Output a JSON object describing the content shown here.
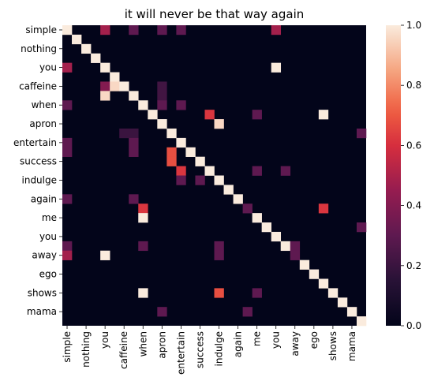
{
  "chart_data": {
    "type": "heatmap",
    "title": "it will never be that way again",
    "x_labels": [
      "simple",
      "nothing",
      "you",
      "caffeine",
      "when",
      "apron",
      "entertain",
      "success",
      "indulge",
      "again",
      "me",
      "you",
      "away",
      "ego",
      "shows",
      "mama"
    ],
    "y_labels": [
      "simple",
      "nothing",
      "you",
      "caffeine",
      "when",
      "apron",
      "entertain",
      "success",
      "indulge",
      "again",
      "me",
      "you",
      "away",
      "ego",
      "shows",
      "mama"
    ],
    "rows": [
      "simple",
      "",
      "nothing",
      "",
      "you",
      "",
      "caffeine",
      "",
      "when",
      "",
      "apron",
      "",
      "entertain",
      "",
      "success",
      "",
      "indulge",
      "",
      "again",
      "",
      "me",
      "",
      "you",
      "",
      "away",
      "",
      "ego",
      "",
      "shows",
      "",
      "mama",
      ""
    ],
    "cols": [
      "simple",
      "",
      "nothing",
      "",
      "you",
      "",
      "caffeine",
      "",
      "when",
      "",
      "apron",
      "",
      "entertain",
      "",
      "success",
      "",
      "indulge",
      "",
      "again",
      "",
      "me",
      "",
      "you",
      "",
      "away",
      "",
      "ego",
      "",
      "shows",
      "",
      "mama",
      ""
    ],
    "values": [
      [
        1,
        0,
        0,
        0,
        0,
        0,
        0,
        0,
        0,
        0,
        0,
        0,
        0,
        0,
        0,
        0,
        0,
        0,
        0,
        0,
        0,
        0,
        0,
        0,
        0,
        0,
        0,
        0,
        0,
        0,
        0,
        0
      ],
      [
        0,
        1,
        0,
        0,
        0,
        0,
        0,
        0,
        0,
        0,
        0,
        0,
        0,
        0,
        0,
        0,
        0,
        0,
        0,
        0,
        0,
        0,
        0,
        0,
        0,
        0,
        0,
        0,
        0,
        0,
        0,
        0
      ],
      [
        0,
        0,
        1,
        0,
        0,
        0,
        0,
        0,
        0,
        0,
        0,
        0,
        0,
        0,
        0,
        0,
        0,
        0,
        0,
        0,
        0,
        0,
        0,
        0,
        0,
        0,
        0,
        0,
        0,
        0,
        0,
        0
      ],
      [
        0,
        0,
        0,
        1,
        0,
        0,
        0,
        0,
        0,
        0,
        0,
        0,
        0,
        0,
        0,
        0,
        0,
        0,
        0,
        0,
        0,
        0,
        0,
        0,
        0,
        0,
        0,
        0,
        0,
        0,
        0,
        0
      ],
      [
        0,
        0,
        0,
        0,
        1,
        0,
        0,
        0,
        0,
        0,
        0,
        0,
        0,
        0,
        0,
        0,
        0,
        0,
        0,
        0,
        0,
        0,
        0,
        0,
        0,
        0,
        0,
        0,
        0,
        0,
        0,
        0
      ],
      [
        0,
        0,
        0,
        0,
        0,
        1,
        0,
        0,
        0,
        0,
        0,
        0,
        0,
        0,
        0,
        0,
        0,
        0,
        0,
        0,
        0,
        0,
        0,
        0,
        0,
        0,
        0,
        0,
        0,
        0,
        0,
        0
      ],
      [
        0,
        0,
        0,
        0,
        0,
        0,
        1,
        0,
        0,
        0,
        0,
        0,
        0,
        0,
        0,
        0,
        0,
        0,
        0,
        0,
        0,
        0,
        0,
        0,
        0,
        0,
        0,
        0,
        0,
        0,
        0,
        0
      ],
      [
        0,
        0,
        0,
        0,
        0,
        0,
        0,
        1,
        0,
        0,
        0,
        0,
        0,
        0,
        0,
        0,
        0,
        0,
        0,
        0,
        0,
        0,
        0,
        0,
        0,
        0,
        0,
        0,
        0,
        0,
        0,
        0
      ],
      [
        0,
        0,
        0,
        0,
        0,
        0,
        0,
        0,
        1,
        0,
        0,
        0,
        0,
        0,
        0,
        0,
        0,
        0,
        0,
        0,
        0,
        0,
        0,
        0,
        0,
        0,
        0,
        0,
        0,
        0,
        0,
        0
      ],
      [
        0,
        0,
        0,
        0,
        0,
        0,
        0,
        0,
        0,
        1,
        0,
        0,
        0,
        0,
        0,
        0,
        0,
        0,
        0,
        0,
        0,
        0,
        0,
        0,
        0,
        0,
        0,
        0,
        0,
        0,
        0,
        0
      ],
      [
        0,
        0,
        0,
        0,
        0,
        0,
        0,
        0,
        0,
        0,
        1,
        0,
        0,
        0,
        0,
        0,
        0,
        0,
        0,
        0,
        0,
        0,
        0,
        0,
        0,
        0,
        0,
        0,
        0,
        0,
        0,
        0
      ],
      [
        0,
        0,
        0,
        0,
        0,
        0,
        0,
        0,
        0,
        0,
        0,
        1,
        0,
        0,
        0,
        0,
        0,
        0,
        0,
        0,
        0,
        0,
        0,
        0,
        0,
        0,
        0,
        0,
        0,
        0,
        0,
        0
      ],
      [
        0,
        0,
        0,
        0,
        0,
        0,
        0,
        0,
        0,
        0,
        0,
        0,
        1,
        0,
        0,
        0,
        0,
        0,
        0,
        0,
        0,
        0,
        0,
        0,
        0,
        0,
        0,
        0,
        0,
        0,
        0,
        0
      ],
      [
        0,
        0,
        0,
        0,
        0,
        0,
        0,
        0,
        0,
        0,
        0,
        0,
        0,
        1,
        0,
        0,
        0,
        0,
        0,
        0,
        0,
        0,
        0,
        0,
        0,
        0,
        0,
        0,
        0,
        0,
        0,
        0
      ],
      [
        0,
        0,
        0,
        0,
        0,
        0,
        0,
        0,
        0,
        0,
        0,
        0,
        0,
        0,
        1,
        0,
        0,
        0,
        0,
        0,
        0,
        0,
        0,
        0,
        0,
        0,
        0,
        0,
        0,
        0,
        0,
        0
      ],
      [
        0,
        0,
        0,
        0,
        0,
        0,
        0,
        0,
        0,
        0,
        0,
        0,
        0,
        0,
        0,
        1,
        0,
        0,
        0,
        0,
        0,
        0,
        0,
        0,
        0,
        0,
        0,
        0,
        0,
        0,
        0,
        0
      ],
      [
        0,
        0,
        0,
        0,
        0,
        0,
        0,
        0,
        0,
        0,
        0,
        0,
        0,
        0,
        0,
        0,
        1,
        0,
        0,
        0,
        0,
        0,
        0,
        0,
        0,
        0,
        0,
        0,
        0,
        0,
        0,
        0
      ],
      [
        0,
        0,
        0,
        0,
        0,
        0,
        0,
        0,
        0,
        0,
        0,
        0,
        0,
        0,
        0,
        0,
        0,
        1,
        0,
        0,
        0,
        0,
        0,
        0,
        0,
        0,
        0,
        0,
        0,
        0,
        0,
        0
      ],
      [
        0,
        0,
        0,
        0,
        0,
        0,
        0,
        0,
        0,
        0,
        0,
        0,
        0,
        0,
        0,
        0,
        0,
        0,
        1,
        0,
        0,
        0,
        0,
        0,
        0,
        0,
        0,
        0,
        0,
        0,
        0,
        0
      ],
      [
        0,
        0,
        0,
        0,
        0,
        0,
        0,
        0,
        0,
        0,
        0,
        0,
        0,
        0,
        0,
        0,
        0,
        0,
        0,
        1,
        0,
        0,
        0,
        0,
        0,
        0,
        0,
        0,
        0,
        0,
        0,
        0
      ],
      [
        0,
        0,
        0,
        0,
        0,
        0,
        0,
        0,
        0,
        0,
        0,
        0,
        0,
        0,
        0,
        0,
        0,
        0,
        0,
        0,
        1,
        0,
        0,
        0,
        0,
        0,
        0,
        0,
        0,
        0,
        0,
        0
      ],
      [
        0,
        0,
        0,
        0,
        0,
        0,
        0,
        0,
        0,
        0,
        0,
        0,
        0,
        0,
        0,
        0,
        0,
        0,
        0,
        0,
        0,
        1,
        0,
        0,
        0,
        0,
        0,
        0,
        0,
        0,
        0,
        0
      ],
      [
        0,
        0,
        0,
        0,
        0,
        0,
        0,
        0,
        0,
        0,
        0,
        0,
        0,
        0,
        0,
        0,
        0,
        0,
        0,
        0,
        0,
        0,
        1,
        0,
        0,
        0,
        0,
        0,
        0,
        0,
        0,
        0
      ],
      [
        0,
        0,
        0,
        0,
        0,
        0,
        0,
        0,
        0,
        0,
        0,
        0,
        0,
        0,
        0,
        0,
        0,
        0,
        0,
        0,
        0,
        0,
        0,
        1,
        0,
        0,
        0,
        0,
        0,
        0,
        0,
        0
      ],
      [
        0,
        0,
        0,
        0,
        0,
        0,
        0,
        0,
        0,
        0,
        0,
        0,
        0,
        0,
        0,
        0,
        0,
        0,
        0,
        0,
        0,
        0,
        0,
        0,
        1,
        0,
        0,
        0,
        0,
        0,
        0,
        0
      ],
      [
        0,
        0,
        0,
        0,
        0,
        0,
        0,
        0,
        0,
        0,
        0,
        0,
        0,
        0,
        0,
        0,
        0,
        0,
        0,
        0,
        0,
        0,
        0,
        0,
        0,
        1,
        0,
        0,
        0,
        0,
        0,
        0
      ],
      [
        0,
        0,
        0,
        0,
        0,
        0,
        0,
        0,
        0,
        0,
        0,
        0,
        0,
        0,
        0,
        0,
        0,
        0,
        0,
        0,
        0,
        0,
        0,
        0,
        0,
        0,
        1,
        0,
        0,
        0,
        0,
        0
      ],
      [
        0,
        0,
        0,
        0,
        0,
        0,
        0,
        0,
        0,
        0,
        0,
        0,
        0,
        0,
        0,
        0,
        0,
        0,
        0,
        0,
        0,
        0,
        0,
        0,
        0,
        0,
        0,
        1,
        0,
        0,
        0,
        0
      ],
      [
        0,
        0,
        0,
        0,
        0,
        0,
        0,
        0,
        0,
        0,
        0,
        0,
        0,
        0,
        0,
        0,
        0,
        0,
        0,
        0,
        0,
        0,
        0,
        0,
        0,
        0,
        0,
        0,
        1,
        0,
        0,
        0
      ],
      [
        0,
        0,
        0,
        0,
        0,
        0,
        0,
        0,
        0,
        0,
        0,
        0,
        0,
        0,
        0,
        0,
        0,
        0,
        0,
        0,
        0,
        0,
        0,
        0,
        0,
        0,
        0,
        0,
        0,
        1,
        0,
        0
      ],
      [
        0,
        0,
        0,
        0,
        0,
        0,
        0,
        0,
        0,
        0,
        0,
        0,
        0,
        0,
        0,
        0,
        0,
        0,
        0,
        0,
        0,
        0,
        0,
        0,
        0,
        0,
        0,
        0,
        0,
        0,
        1,
        0
      ],
      [
        0,
        0,
        0,
        0,
        0,
        0,
        0,
        0,
        0,
        0,
        0,
        0,
        0,
        0,
        0,
        0,
        0,
        0,
        0,
        0,
        0,
        0,
        0,
        0,
        0,
        0,
        0,
        0,
        0,
        0,
        0,
        1
      ]
    ],
    "offdiag": [
      [
        0,
        4,
        0.48
      ],
      [
        0,
        7,
        0.3
      ],
      [
        0,
        10,
        0.3
      ],
      [
        0,
        12,
        0.3
      ],
      [
        0,
        22,
        0.48
      ],
      [
        4,
        0,
        0.48
      ],
      [
        4,
        22,
        1.0
      ],
      [
        6,
        4,
        0.4
      ],
      [
        6,
        5,
        0.96
      ],
      [
        6,
        10,
        0.22
      ],
      [
        7,
        4,
        0.96
      ],
      [
        7,
        10,
        0.22
      ],
      [
        8,
        0,
        0.3
      ],
      [
        8,
        10,
        0.3
      ],
      [
        8,
        12,
        0.3
      ],
      [
        9,
        15,
        0.62
      ],
      [
        9,
        20,
        0.3
      ],
      [
        9,
        27,
        1.0
      ],
      [
        10,
        16,
        0.96
      ],
      [
        11,
        6,
        0.2
      ],
      [
        11,
        7,
        0.2
      ],
      [
        11,
        31,
        0.3
      ],
      [
        12,
        0,
        0.3
      ],
      [
        12,
        7,
        0.3
      ],
      [
        13,
        0,
        0.3
      ],
      [
        13,
        7,
        0.3
      ],
      [
        13,
        11,
        0.68
      ],
      [
        14,
        11,
        0.68
      ],
      [
        15,
        20,
        0.3
      ],
      [
        15,
        23,
        0.3
      ],
      [
        15,
        12,
        0.62
      ],
      [
        16,
        14,
        0.3
      ],
      [
        16,
        12,
        0.3
      ],
      [
        18,
        0,
        0.3
      ],
      [
        18,
        7,
        0.3
      ],
      [
        19,
        8,
        0.62
      ],
      [
        19,
        19,
        0.3
      ],
      [
        19,
        27,
        0.62
      ],
      [
        20,
        8,
        1.0
      ],
      [
        21,
        31,
        0.3
      ],
      [
        23,
        0,
        0.3
      ],
      [
        23,
        8,
        0.3
      ],
      [
        23,
        16,
        0.3
      ],
      [
        23,
        24,
        0.3
      ],
      [
        24,
        0,
        0.48
      ],
      [
        24,
        4,
        1.0
      ],
      [
        24,
        16,
        0.3
      ],
      [
        24,
        24,
        0.3
      ],
      [
        28,
        8,
        1.0
      ],
      [
        28,
        16,
        0.68
      ],
      [
        28,
        20,
        0.3
      ],
      [
        30,
        10,
        0.3
      ],
      [
        30,
        19,
        0.3
      ]
    ],
    "colorbar": {
      "min": 0.0,
      "max": 1.0,
      "ticks": [
        "0.0",
        "0.2",
        "0.4",
        "0.6",
        "0.8",
        "1.0"
      ]
    },
    "colormap": "rocket"
  }
}
